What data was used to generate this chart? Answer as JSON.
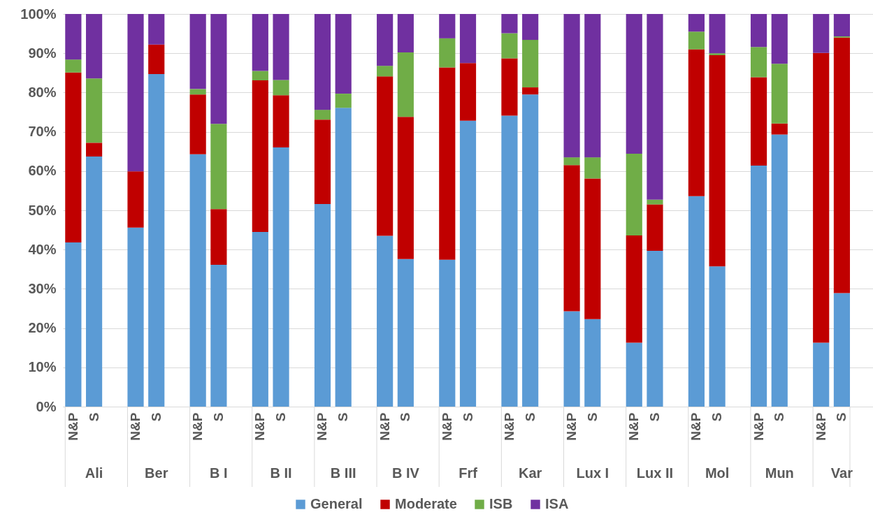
{
  "chart_data": {
    "type": "bar",
    "stacked": true,
    "categories": [
      "N&P",
      "S",
      "N&P",
      "S",
      "N&P",
      "S",
      "N&P",
      "S",
      "N&P",
      "S",
      "N&P",
      "S",
      "N&P",
      "S",
      "N&P",
      "S",
      "N&P",
      "S",
      "N&P",
      "S",
      "N&P",
      "S",
      "N&P",
      "S",
      "N&P",
      "S"
    ],
    "annotations": [
      "Ali",
      "Ber",
      "B I",
      "B II",
      "B III",
      "B IV",
      "Frf",
      "Kar",
      "Lux I",
      "Lux II",
      "Mol",
      "Mun",
      "Var"
    ],
    "series": [
      {
        "name": "General",
        "color": "#5b9bd5",
        "values": [
          41.8,
          63.7,
          45.6,
          84.7,
          64.3,
          36.1,
          44.5,
          66.0,
          51.6,
          76.1,
          43.5,
          37.6,
          37.4,
          72.8,
          74.1,
          79.5,
          24.3,
          22.3,
          16.3,
          39.7,
          53.6,
          35.7,
          61.4,
          69.3,
          16.3,
          28.9
        ]
      },
      {
        "name": "Moderate",
        "color": "#c00000",
        "values": [
          43.3,
          3.5,
          14.3,
          7.5,
          15.2,
          14.2,
          38.6,
          13.3,
          21.5,
          0,
          40.6,
          36.2,
          49.0,
          14.7,
          14.6,
          1.8,
          37.2,
          35.8,
          27.3,
          11.8,
          37.4,
          53.8,
          22.5,
          2.8,
          73.8,
          65.1
        ]
      },
      {
        "name": "ISB",
        "color": "#70ad47",
        "values": [
          3.3,
          16.4,
          0,
          0,
          1.4,
          21.7,
          2.4,
          3.9,
          2.5,
          3.6,
          2.7,
          16.4,
          7.4,
          0,
          6.4,
          12.1,
          2.0,
          5.4,
          20.8,
          1.2,
          4.5,
          0.5,
          7.7,
          15.2,
          0,
          0.3
        ]
      },
      {
        "name": "ISA",
        "color": "#7030a0",
        "values": [
          11.6,
          16.4,
          40.1,
          7.8,
          19.1,
          28.0,
          14.5,
          16.8,
          24.4,
          20.3,
          13.2,
          9.8,
          6.2,
          12.5,
          4.9,
          6.6,
          36.5,
          36.5,
          35.6,
          47.3,
          4.5,
          10.0,
          8.4,
          12.7,
          9.9,
          5.7
        ]
      }
    ],
    "ylim": [
      0,
      100
    ],
    "yticks": [
      {
        "value": 0,
        "label": "0%"
      },
      {
        "value": 10,
        "label": "10%"
      },
      {
        "value": 20,
        "label": "20%"
      },
      {
        "value": 30,
        "label": "30%"
      },
      {
        "value": 40,
        "label": "40%"
      },
      {
        "value": 50,
        "label": "50%"
      },
      {
        "value": 60,
        "label": "60%"
      },
      {
        "value": 70,
        "label": "70%"
      },
      {
        "value": 80,
        "label": "80%"
      },
      {
        "value": 90,
        "label": "90%"
      },
      {
        "value": 100,
        "label": "100%"
      }
    ],
    "grid": "y",
    "legend": "bottom"
  }
}
